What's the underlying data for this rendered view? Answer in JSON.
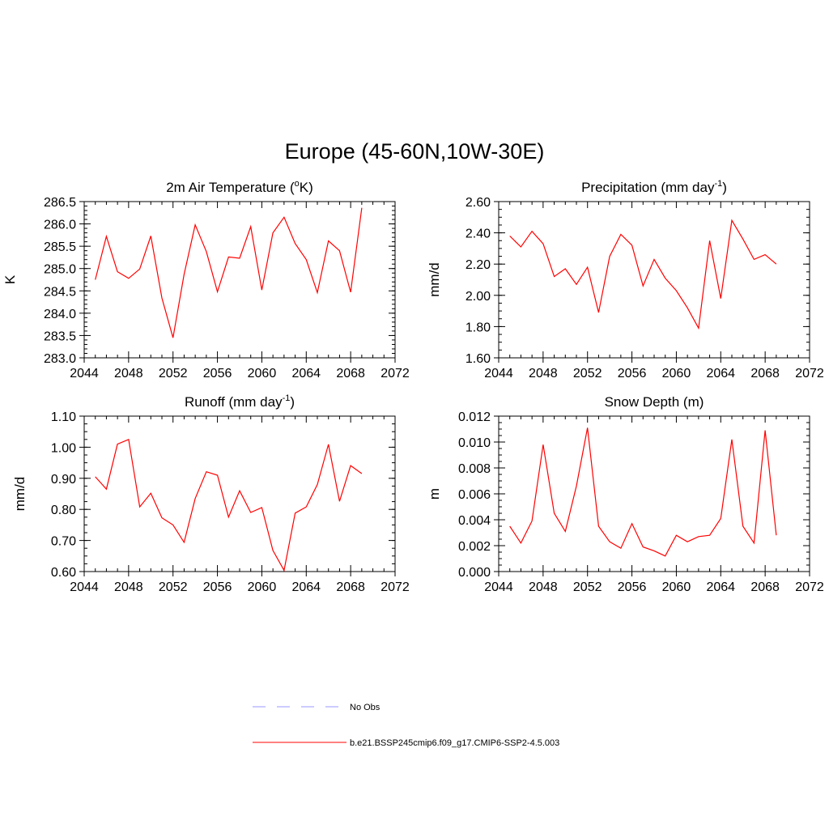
{
  "figure": {
    "title": "Europe (45-60N,10W-30E)"
  },
  "legend": [
    {
      "label": "No Obs",
      "color": "#9999ff",
      "dash": true
    },
    {
      "label": "b.e21.BSSP245cmip6.f09_g17.CMIP6-SSP2-4.5.003",
      "color": "#ff0000",
      "dash": false
    }
  ],
  "colors": {
    "series": "#ff0000",
    "obs": "#9999ff",
    "axis": "#000000"
  },
  "chart_data": [
    {
      "type": "line",
      "title": "2m Air Temperature (",
      "title_sup": "o",
      "title_after": "K)",
      "xlabel": "",
      "ylabel": "K",
      "xlim": [
        2044,
        2072
      ],
      "ylim": [
        283.0,
        286.5
      ],
      "xticks": [
        2044,
        2048,
        2052,
        2056,
        2060,
        2064,
        2068,
        2072
      ],
      "xticklabels": [
        "2044",
        "2048",
        "2052",
        "2056",
        "2060",
        "2064",
        "2068",
        "2072"
      ],
      "yticks": [
        283.0,
        283.5,
        284.0,
        284.5,
        285.0,
        285.5,
        286.0,
        286.5
      ],
      "yticklabels": [
        "283.0",
        "283.5",
        "284.0",
        "284.5",
        "285.0",
        "285.5",
        "286.0",
        "286.5"
      ],
      "yminor": 0.1,
      "x": [
        2045,
        2046,
        2047,
        2048,
        2049,
        2050,
        2051,
        2052,
        2053,
        2054,
        2055,
        2056,
        2057,
        2058,
        2059,
        2060,
        2061,
        2062,
        2063,
        2064,
        2065,
        2066,
        2067,
        2068,
        2069
      ],
      "series": [
        {
          "name": "b.e21.BSSP245cmip6.f09_g17.CMIP6-SSP2-4.5.003",
          "values": [
            284.75,
            285.72,
            284.93,
            284.78,
            284.99,
            285.73,
            284.34,
            283.45,
            284.87,
            285.98,
            285.38,
            284.48,
            285.26,
            285.23,
            285.94,
            284.52,
            285.8,
            286.15,
            285.56,
            285.2,
            284.46,
            285.62,
            285.4,
            284.47,
            286.36
          ]
        }
      ]
    },
    {
      "type": "line",
      "title": "Precipitation (mm day",
      "title_sup": "-1",
      "title_after": ")",
      "xlabel": "",
      "ylabel": "mm/d",
      "xlim": [
        2044,
        2072
      ],
      "ylim": [
        1.6,
        2.6
      ],
      "xticks": [
        2044,
        2048,
        2052,
        2056,
        2060,
        2064,
        2068,
        2072
      ],
      "xticklabels": [
        "2044",
        "2048",
        "2052",
        "2056",
        "2060",
        "2064",
        "2068",
        "2072"
      ],
      "yticks": [
        1.6,
        1.8,
        2.0,
        2.2,
        2.4,
        2.6
      ],
      "yticklabels": [
        "1.60",
        "1.80",
        "2.00",
        "2.20",
        "2.40",
        "2.60"
      ],
      "yminor": 0.05,
      "x": [
        2045,
        2046,
        2047,
        2048,
        2049,
        2050,
        2051,
        2052,
        2053,
        2054,
        2055,
        2056,
        2057,
        2058,
        2059,
        2060,
        2061,
        2062,
        2063,
        2064,
        2065,
        2066,
        2067,
        2068,
        2069
      ],
      "series": [
        {
          "name": "b.e21.BSSP245cmip6.f09_g17.CMIP6-SSP2-4.5.003",
          "values": [
            2.38,
            2.31,
            2.41,
            2.33,
            2.12,
            2.17,
            2.07,
            2.18,
            1.89,
            2.25,
            2.39,
            2.32,
            2.06,
            2.23,
            2.11,
            2.03,
            1.92,
            1.79,
            2.35,
            1.98,
            2.48,
            2.36,
            2.23,
            2.26,
            2.2
          ]
        }
      ]
    },
    {
      "type": "line",
      "title": "Runoff (mm day",
      "title_sup": "-1",
      "title_after": ")",
      "xlabel": "",
      "ylabel": "mm/d",
      "xlim": [
        2044,
        2072
      ],
      "ylim": [
        0.6,
        1.1
      ],
      "xticks": [
        2044,
        2048,
        2052,
        2056,
        2060,
        2064,
        2068,
        2072
      ],
      "xticklabels": [
        "2044",
        "2048",
        "2052",
        "2056",
        "2060",
        "2064",
        "2068",
        "2072"
      ],
      "yticks": [
        0.6,
        0.7,
        0.8,
        0.9,
        1.0,
        1.1
      ],
      "yticklabels": [
        "0.60",
        "0.70",
        "0.80",
        "0.90",
        "1.00",
        "1.10"
      ],
      "yminor": 0.025,
      "x": [
        2045,
        2046,
        2047,
        2048,
        2049,
        2050,
        2051,
        2052,
        2053,
        2054,
        2055,
        2056,
        2057,
        2058,
        2059,
        2060,
        2061,
        2062,
        2063,
        2064,
        2065,
        2066,
        2067,
        2068,
        2069
      ],
      "series": [
        {
          "name": "b.e21.BSSP245cmip6.f09_g17.CMIP6-SSP2-4.5.003",
          "values": [
            0.905,
            0.865,
            1.01,
            1.025,
            0.808,
            0.852,
            0.773,
            0.75,
            0.694,
            0.835,
            0.921,
            0.91,
            0.775,
            0.86,
            0.79,
            0.806,
            0.668,
            0.604,
            0.788,
            0.808,
            0.88,
            1.009,
            0.826,
            0.941,
            0.915
          ]
        }
      ]
    },
    {
      "type": "line",
      "title": "Snow Depth (m)",
      "title_sup": "",
      "title_after": "",
      "xlabel": "",
      "ylabel": "m",
      "xlim": [
        2044,
        2072
      ],
      "ylim": [
        0.0,
        0.012
      ],
      "xticks": [
        2044,
        2048,
        2052,
        2056,
        2060,
        2064,
        2068,
        2072
      ],
      "xticklabels": [
        "2044",
        "2048",
        "2052",
        "2056",
        "2060",
        "2064",
        "2068",
        "2072"
      ],
      "yticks": [
        0.0,
        0.002,
        0.004,
        0.006,
        0.008,
        0.01,
        0.012
      ],
      "yticklabels": [
        "0.000",
        "0.002",
        "0.004",
        "0.006",
        "0.008",
        "0.010",
        "0.012"
      ],
      "yminor": 0.0005,
      "x": [
        2045,
        2046,
        2047,
        2048,
        2049,
        2050,
        2051,
        2052,
        2053,
        2054,
        2055,
        2056,
        2057,
        2058,
        2059,
        2060,
        2061,
        2062,
        2063,
        2064,
        2065,
        2066,
        2067,
        2068,
        2069
      ],
      "series": [
        {
          "name": "b.e21.BSSP245cmip6.f09_g17.CMIP6-SSP2-4.5.003",
          "values": [
            0.0035,
            0.0022,
            0.0039,
            0.0098,
            0.0045,
            0.0031,
            0.0066,
            0.0111,
            0.0035,
            0.0023,
            0.0018,
            0.0037,
            0.0019,
            0.0016,
            0.0012,
            0.0028,
            0.0023,
            0.0027,
            0.0028,
            0.0041,
            0.0102,
            0.0035,
            0.0022,
            0.0109,
            0.0028
          ]
        }
      ]
    }
  ]
}
